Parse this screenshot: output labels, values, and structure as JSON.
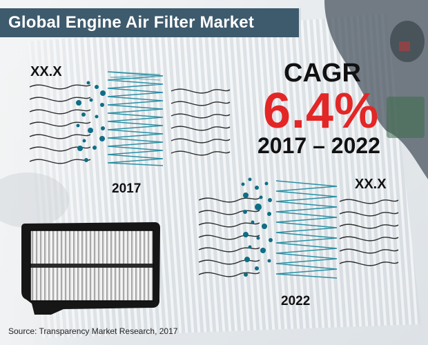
{
  "title": "Global Engine Air Filter Market",
  "start": {
    "value_label": "XX.X",
    "year_label": "2017"
  },
  "end": {
    "value_label": "XX.X",
    "year_label": "2022"
  },
  "cagr": {
    "label": "CAGR",
    "value": "6.4%",
    "period": "2017 – 2022"
  },
  "source": "Source: Transparency Market Research, 2017",
  "colors": {
    "banner": "#3e5a6d",
    "accent_red": "#e32626",
    "filter_teal": "#2a8fa3",
    "dot_teal": "#0e6e85"
  },
  "icons": {
    "filter_product": "air-filter-product-icon",
    "filter_left": "filter-diagram-icon",
    "filter_right": "filter-diagram-icon"
  }
}
